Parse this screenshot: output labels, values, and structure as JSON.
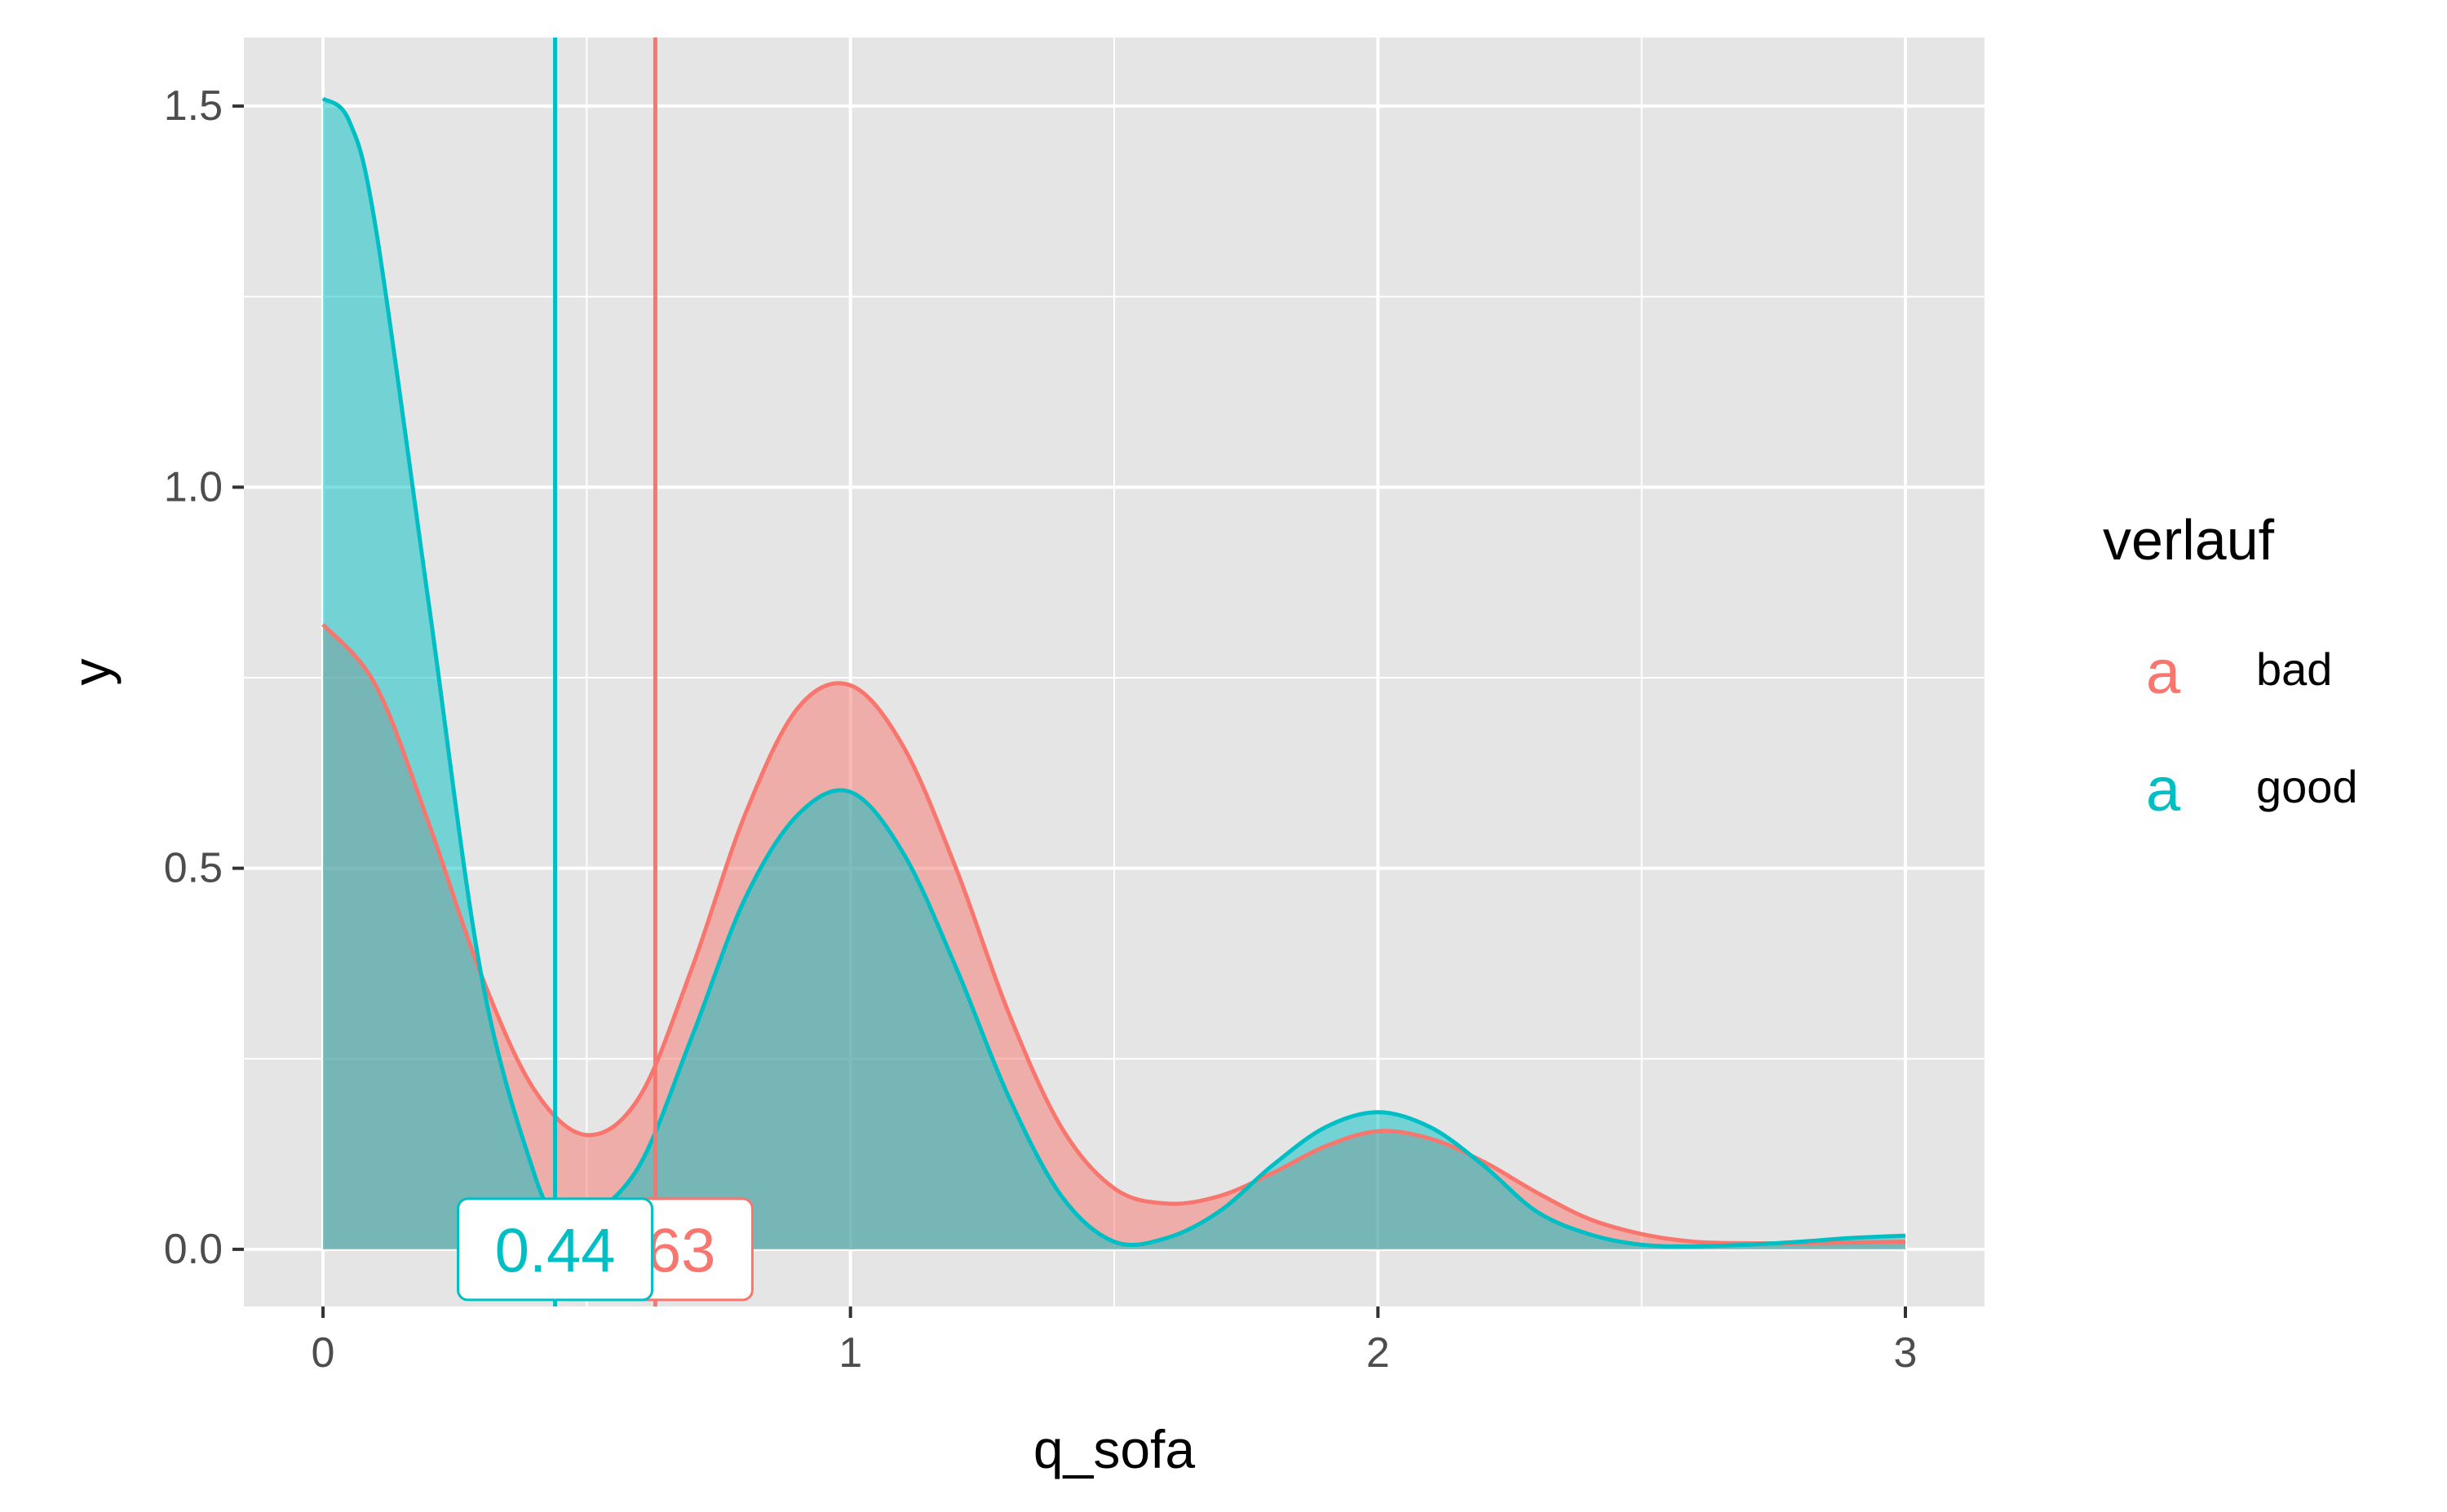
{
  "chart_data": {
    "type": "area",
    "title": "",
    "xlabel": "q_sofa",
    "ylabel": "y",
    "xlim": [
      -0.15,
      3.15
    ],
    "ylim": [
      -0.075,
      1.59
    ],
    "x_ticks": [
      0,
      1,
      2,
      3
    ],
    "x_tick_labels": [
      "0",
      "1",
      "2",
      "3"
    ],
    "y_ticks": [
      0.0,
      0.5,
      1.0,
      1.5
    ],
    "y_tick_labels": [
      "0.0",
      "0.5",
      "1.0",
      "1.5"
    ],
    "grid": true,
    "legend_position": "right",
    "legend_title": "verlauf",
    "series": [
      {
        "name": "bad",
        "color": "#F8766D",
        "points": [
          [
            0,
            0.82
          ],
          [
            0.1,
            0.74
          ],
          [
            0.2,
            0.56
          ],
          [
            0.3,
            0.36
          ],
          [
            0.4,
            0.21
          ],
          [
            0.5,
            0.15
          ],
          [
            0.6,
            0.2
          ],
          [
            0.7,
            0.37
          ],
          [
            0.8,
            0.57
          ],
          [
            0.9,
            0.71
          ],
          [
            1.0,
            0.74
          ],
          [
            1.1,
            0.66
          ],
          [
            1.2,
            0.5
          ],
          [
            1.3,
            0.31
          ],
          [
            1.4,
            0.16
          ],
          [
            1.5,
            0.08
          ],
          [
            1.6,
            0.06
          ],
          [
            1.7,
            0.07
          ],
          [
            1.8,
            0.1
          ],
          [
            1.9,
            0.135
          ],
          [
            2.0,
            0.155
          ],
          [
            2.1,
            0.145
          ],
          [
            2.2,
            0.115
          ],
          [
            2.3,
            0.075
          ],
          [
            2.4,
            0.04
          ],
          [
            2.5,
            0.02
          ],
          [
            2.6,
            0.01
          ],
          [
            2.7,
            0.008
          ],
          [
            2.8,
            0.008
          ],
          [
            2.9,
            0.009
          ],
          [
            3.0,
            0.01
          ]
        ],
        "mean": 0.63,
        "mean_label": "0.63"
      },
      {
        "name": "good",
        "color": "#00BFC4",
        "points": [
          [
            0,
            1.51
          ],
          [
            0.05,
            1.48
          ],
          [
            0.1,
            1.34
          ],
          [
            0.2,
            0.85
          ],
          [
            0.3,
            0.36
          ],
          [
            0.4,
            0.1
          ],
          [
            0.45,
            0.04
          ],
          [
            0.5,
            0.04
          ],
          [
            0.6,
            0.11
          ],
          [
            0.7,
            0.28
          ],
          [
            0.8,
            0.46
          ],
          [
            0.9,
            0.57
          ],
          [
            1.0,
            0.6
          ],
          [
            1.1,
            0.52
          ],
          [
            1.2,
            0.37
          ],
          [
            1.3,
            0.2
          ],
          [
            1.4,
            0.07
          ],
          [
            1.5,
            0.01
          ],
          [
            1.6,
            0.015
          ],
          [
            1.7,
            0.05
          ],
          [
            1.8,
            0.11
          ],
          [
            1.9,
            0.16
          ],
          [
            2.0,
            0.18
          ],
          [
            2.1,
            0.16
          ],
          [
            2.2,
            0.11
          ],
          [
            2.3,
            0.05
          ],
          [
            2.4,
            0.02
          ],
          [
            2.5,
            0.006
          ],
          [
            2.6,
            0.004
          ],
          [
            2.7,
            0.006
          ],
          [
            2.8,
            0.01
          ],
          [
            2.9,
            0.015
          ],
          [
            3.0,
            0.018
          ]
        ],
        "mean": 0.44,
        "mean_label": "0.44"
      }
    ]
  },
  "legend": {
    "title": "verlauf",
    "key_glyph": "a",
    "items": [
      {
        "label": "bad",
        "color": "#F8766D"
      },
      {
        "label": "good",
        "color": "#00BFC4"
      }
    ]
  },
  "colors": {
    "panel_background": "#E5E5E5",
    "grid": "#FFFFFF",
    "text": "#4D4D4D"
  }
}
